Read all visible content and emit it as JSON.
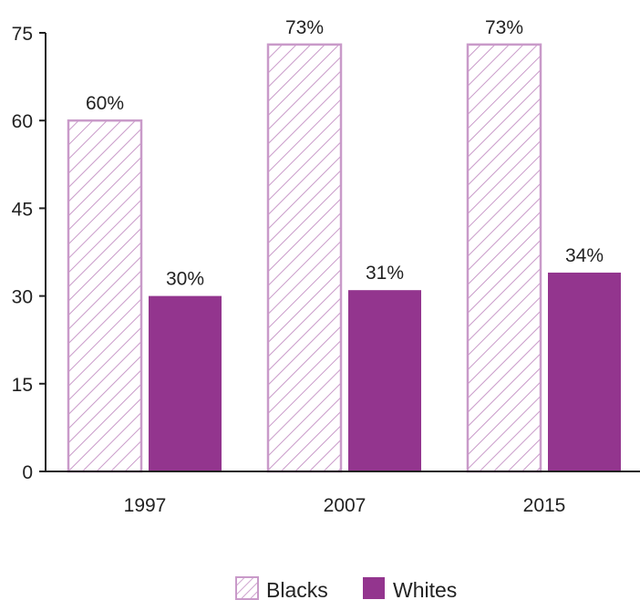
{
  "chart_data": {
    "type": "bar",
    "categories": [
      "1997",
      "2007",
      "2015"
    ],
    "series": [
      {
        "name": "Blacks",
        "values": [
          60,
          73,
          73
        ],
        "labels": [
          "60%",
          "73%",
          "73%"
        ],
        "style": "hatched"
      },
      {
        "name": "Whites",
        "values": [
          30,
          31,
          34
        ],
        "labels": [
          "30%",
          "31%",
          "34%"
        ],
        "style": "solid"
      }
    ],
    "yticks": [
      "0",
      "15",
      "30",
      "45",
      "60",
      "75"
    ],
    "ylim": [
      0,
      75
    ],
    "grid": false,
    "legend_position": "bottom-center",
    "colors": {
      "blacks_stroke": "#c99ac9",
      "whites_fill": "#93358e",
      "axis": "#222222"
    }
  }
}
